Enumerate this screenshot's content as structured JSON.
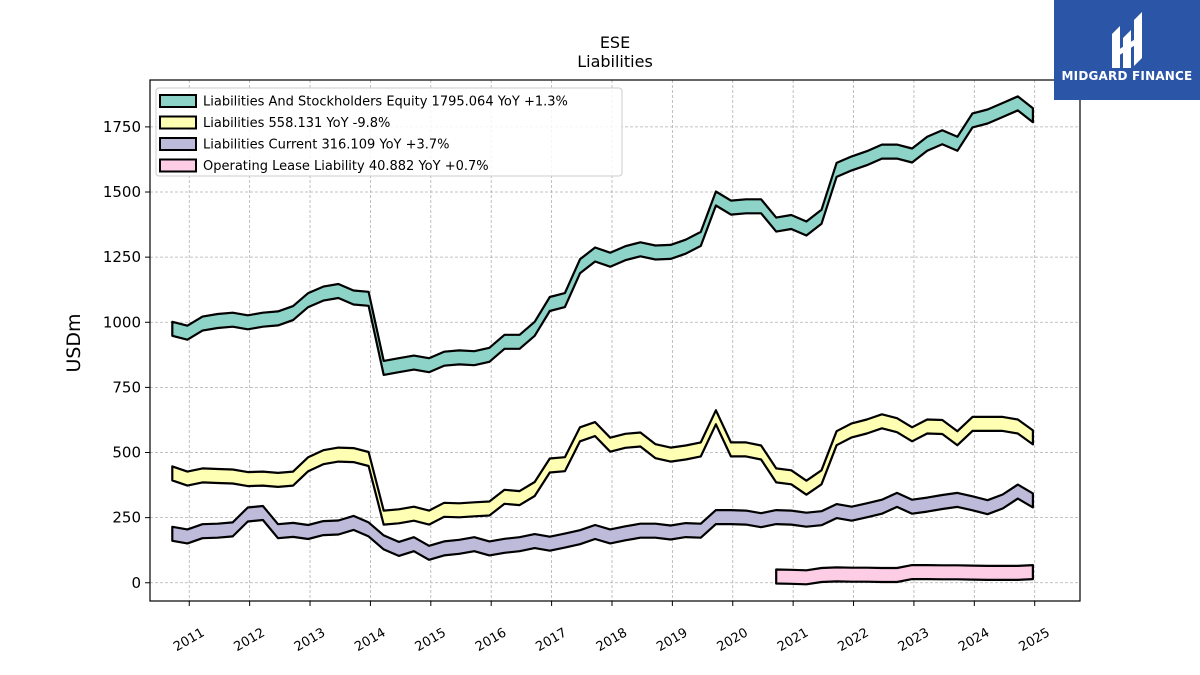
{
  "brand": {
    "name": "MIDGARD FINANCE",
    "background": "#2b56a8"
  },
  "chart_data": {
    "type": "line",
    "title": "ESE",
    "subtitle": "Liabilities",
    "xlabel": "",
    "ylabel": "USDm",
    "xlim": [
      2010.35,
      2025.75
    ],
    "ylim": [
      -70,
      1930
    ],
    "yticks": [
      0,
      250,
      500,
      750,
      1000,
      1250,
      1500,
      1750
    ],
    "xticks": [
      "2011",
      "2012",
      "2013",
      "2014",
      "2015",
      "2016",
      "2017",
      "2018",
      "2019",
      "2020",
      "2021",
      "2022",
      "2023",
      "2024",
      "2025"
    ],
    "grid": true,
    "legend_position": "top-left",
    "series": [
      {
        "name": "Liabilities And Stockholders Equity",
        "legend": "Liabilities And Stockholders Equity  1795.064 YoY +1.3%",
        "color": "#8dd3c7",
        "x": [
          2010.72,
          2010.97,
          2011.22,
          2011.47,
          2011.72,
          2011.97,
          2012.22,
          2012.47,
          2012.72,
          2012.97,
          2013.22,
          2013.47,
          2013.72,
          2013.97,
          2014.22,
          2014.47,
          2014.72,
          2014.97,
          2015.22,
          2015.47,
          2015.72,
          2015.97,
          2016.22,
          2016.47,
          2016.72,
          2016.97,
          2017.22,
          2017.47,
          2017.72,
          2017.97,
          2018.22,
          2018.47,
          2018.72,
          2018.97,
          2019.22,
          2019.47,
          2019.72,
          2019.97,
          2020.22,
          2020.47,
          2020.72,
          2020.97,
          2021.22,
          2021.47,
          2021.72,
          2021.97,
          2022.22,
          2022.47,
          2022.72,
          2022.97,
          2023.22,
          2023.47,
          2023.72,
          2023.97,
          2024.22,
          2024.47,
          2024.72,
          2024.97
        ],
        "values": [
          975,
          960,
          995,
          1005,
          1010,
          1000,
          1010,
          1015,
          1035,
          1085,
          1110,
          1120,
          1095,
          1090,
          825,
          835,
          845,
          835,
          860,
          865,
          862,
          875,
          925,
          925,
          975,
          1070,
          1085,
          1215,
          1260,
          1240,
          1265,
          1280,
          1268,
          1270,
          1290,
          1320,
          1475,
          1440,
          1445,
          1445,
          1375,
          1385,
          1360,
          1405,
          1585,
          1610,
          1630,
          1655,
          1655,
          1640,
          1685,
          1710,
          1685,
          1775,
          1790,
          1815,
          1840,
          1795
        ]
      },
      {
        "name": "Liabilities",
        "legend": "Liabilities  558.131 YoY -9.8%",
        "color": "#ffffb3",
        "x": [
          2010.72,
          2010.97,
          2011.22,
          2011.47,
          2011.72,
          2011.97,
          2012.22,
          2012.47,
          2012.72,
          2012.97,
          2013.22,
          2013.47,
          2013.72,
          2013.97,
          2014.22,
          2014.47,
          2014.72,
          2014.97,
          2015.22,
          2015.47,
          2015.72,
          2015.97,
          2016.22,
          2016.47,
          2016.72,
          2016.97,
          2017.22,
          2017.47,
          2017.72,
          2017.97,
          2018.22,
          2018.47,
          2018.72,
          2018.97,
          2019.22,
          2019.47,
          2019.72,
          2019.97,
          2020.22,
          2020.47,
          2020.72,
          2020.97,
          2021.22,
          2021.47,
          2021.72,
          2021.97,
          2022.22,
          2022.47,
          2022.72,
          2022.97,
          2023.22,
          2023.47,
          2023.72,
          2023.97,
          2024.22,
          2024.47,
          2024.72,
          2024.97
        ],
        "values": [
          420,
          400,
          412,
          410,
          408,
          398,
          400,
          395,
          400,
          455,
          482,
          492,
          490,
          475,
          250,
          255,
          265,
          250,
          280,
          278,
          282,
          285,
          330,
          325,
          360,
          450,
          455,
          570,
          590,
          530,
          545,
          550,
          505,
          492,
          500,
          512,
          635,
          512,
          512,
          500,
          412,
          405,
          365,
          405,
          555,
          585,
          600,
          620,
          605,
          570,
          600,
          598,
          555,
          610,
          610,
          610,
          600,
          558
        ]
      },
      {
        "name": "Liabilities Current",
        "legend": "Liabilities Current  316.109 YoY +3.7%",
        "color": "#bebada",
        "x": [
          2010.72,
          2010.97,
          2011.22,
          2011.47,
          2011.72,
          2011.97,
          2012.22,
          2012.47,
          2012.72,
          2012.97,
          2013.22,
          2013.47,
          2013.72,
          2013.97,
          2014.22,
          2014.47,
          2014.72,
          2014.97,
          2015.22,
          2015.47,
          2015.72,
          2015.97,
          2016.22,
          2016.47,
          2016.72,
          2016.97,
          2017.22,
          2017.47,
          2017.72,
          2017.97,
          2018.22,
          2018.47,
          2018.72,
          2018.97,
          2019.22,
          2019.47,
          2019.72,
          2019.97,
          2020.22,
          2020.47,
          2020.72,
          2020.97,
          2021.22,
          2021.47,
          2021.72,
          2021.97,
          2022.22,
          2022.47,
          2022.72,
          2022.97,
          2023.22,
          2023.47,
          2023.72,
          2023.97,
          2024.22,
          2024.47,
          2024.72,
          2024.97
        ],
        "values": [
          188,
          178,
          198,
          200,
          205,
          262,
          268,
          198,
          203,
          195,
          210,
          212,
          230,
          205,
          155,
          130,
          148,
          115,
          132,
          138,
          148,
          132,
          142,
          148,
          160,
          150,
          162,
          175,
          195,
          178,
          190,
          200,
          200,
          193,
          202,
          200,
          252,
          252,
          250,
          240,
          252,
          250,
          242,
          248,
          275,
          265,
          278,
          292,
          318,
          292,
          300,
          310,
          318,
          305,
          290,
          312,
          350,
          316
        ]
      },
      {
        "name": "Operating Lease Liability",
        "legend": "Operating Lease Liability  40.882 YoY +0.7%",
        "color": "#fccde5",
        "x": [
          2020.72,
          2020.97,
          2021.22,
          2021.47,
          2021.72,
          2021.97,
          2022.22,
          2022.47,
          2022.72,
          2022.97,
          2023.22,
          2023.47,
          2023.72,
          2023.97,
          2024.22,
          2024.47,
          2024.72,
          2024.97
        ],
        "values": [
          24,
          23,
          21,
          30,
          32,
          31,
          31,
          30,
          30,
          41,
          41,
          40,
          40,
          39,
          38,
          38,
          38,
          41
        ]
      }
    ]
  }
}
